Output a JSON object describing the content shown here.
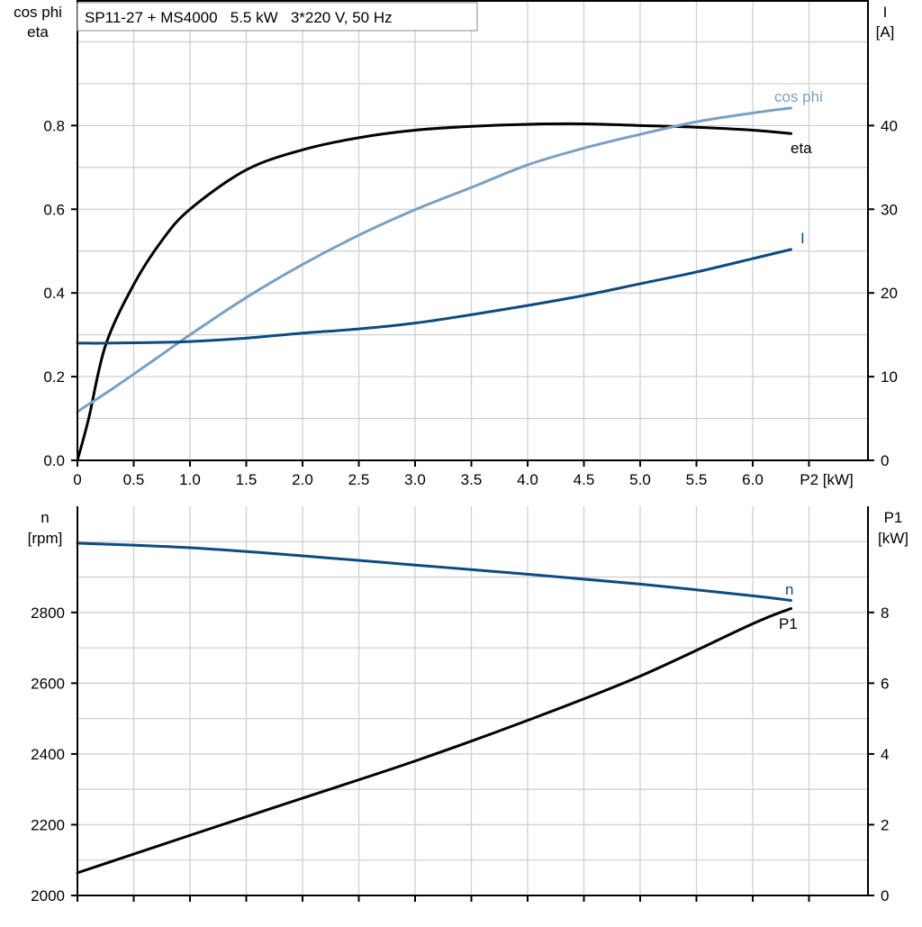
{
  "chart_data": [
    {
      "type": "line",
      "title": "SP11-27 + MS4000   5.5 kW   3*220 V, 50 Hz",
      "xlabel": "P2 [kW]",
      "ylabel_left": [
        "cos phi",
        "eta"
      ],
      "ylabel_right": [
        "I",
        "[A]"
      ],
      "xlim": [
        0,
        7.0
      ],
      "ylim_left": [
        0,
        1.1
      ],
      "ylim_right": [
        0,
        55
      ],
      "x_ticks": [
        "0",
        "0.5",
        "1.0",
        "1.5",
        "2.0",
        "2.5",
        "3.0",
        "3.5",
        "4.0",
        "4.5",
        "5.0",
        "5.5",
        "6.0"
      ],
      "x_tick_values": [
        0,
        0.5,
        1.0,
        1.5,
        2.0,
        2.5,
        3.0,
        3.5,
        4.0,
        4.5,
        5.0,
        5.5,
        6.0
      ],
      "y_left_ticks": [
        "0.0",
        "0.2",
        "0.4",
        "0.6",
        "0.8"
      ],
      "y_left_tick_values": [
        0,
        0.2,
        0.4,
        0.6,
        0.8
      ],
      "y_right_ticks": [
        "0",
        "10",
        "20",
        "30",
        "40"
      ],
      "y_right_tick_values": [
        0,
        10,
        20,
        30,
        40
      ],
      "grid": true,
      "x": [
        0,
        0.1,
        0.25,
        0.5,
        0.75,
        1.0,
        1.5,
        2.0,
        2.5,
        3.0,
        3.5,
        4.0,
        4.5,
        5.0,
        5.5,
        6.0,
        6.34
      ],
      "series": [
        {
          "name": "eta",
          "axis": "left",
          "color": "#000000",
          "values": [
            0,
            0.1,
            0.275,
            0.42,
            0.525,
            0.6,
            0.694,
            0.742,
            0.771,
            0.789,
            0.798,
            0.803,
            0.804,
            0.8,
            0.796,
            0.789,
            0.781
          ]
        },
        {
          "name": "cos phi",
          "axis": "left",
          "color": "#7a9fc1",
          "values": [
            0.116,
            0.134,
            0.16,
            0.206,
            0.253,
            0.3,
            0.389,
            0.468,
            0.538,
            0.599,
            0.652,
            0.706,
            0.746,
            0.779,
            0.809,
            0.83,
            0.842
          ]
        },
        {
          "name": "I",
          "axis": "right",
          "color": "#0e4a80",
          "values": [
            14.0,
            14.0,
            14.0,
            14.05,
            14.1,
            14.2,
            14.6,
            15.2,
            15.7,
            16.4,
            17.4,
            18.5,
            19.7,
            21.1,
            22.5,
            24.1,
            25.2
          ]
        }
      ]
    },
    {
      "type": "line",
      "xlabel": "",
      "ylabel_left": [
        "n",
        "[rpm]"
      ],
      "ylabel_right": [
        "P1",
        "[kW]"
      ],
      "xlim": [
        0,
        7.0
      ],
      "ylim_left": [
        2000,
        3100
      ],
      "ylim_right": [
        0,
        11
      ],
      "y_left_ticks": [
        "2000",
        "2200",
        "2400",
        "2600",
        "2800"
      ],
      "y_left_tick_values": [
        2000,
        2200,
        2400,
        2600,
        2800
      ],
      "y_right_ticks": [
        "0",
        "2",
        "4",
        "6",
        "8"
      ],
      "y_right_tick_values": [
        0,
        2,
        4,
        6,
        8
      ],
      "grid": true,
      "x": [
        0,
        1.0,
        2.0,
        3.0,
        4.0,
        5.0,
        6.0,
        6.34
      ],
      "series": [
        {
          "name": "n",
          "axis": "left",
          "color": "#0e4a80",
          "values": [
            2996,
            2983,
            2960,
            2934,
            2908,
            2880,
            2847,
            2834
          ]
        },
        {
          "name": "P1",
          "axis": "right",
          "color": "#000000",
          "values": [
            0.64,
            1.7,
            2.75,
            3.8,
            4.95,
            6.2,
            7.68,
            8.11
          ]
        }
      ]
    }
  ]
}
